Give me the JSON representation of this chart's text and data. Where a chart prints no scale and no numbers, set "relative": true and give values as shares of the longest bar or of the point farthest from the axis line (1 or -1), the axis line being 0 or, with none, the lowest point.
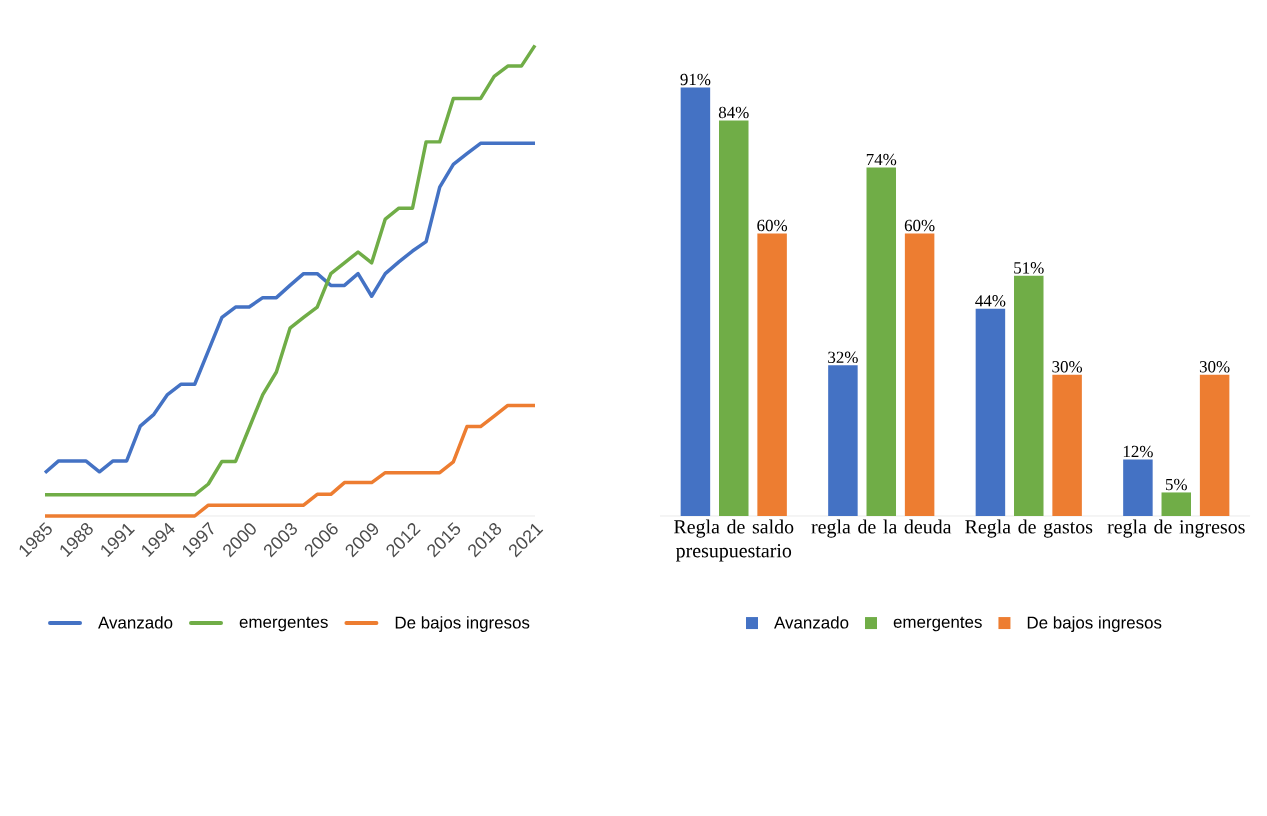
{
  "chart_data": [
    {
      "type": "line",
      "relative": true,
      "marker": "none",
      "legend": "bottom",
      "x": [
        1985,
        1986,
        1987,
        1988,
        1989,
        1990,
        1991,
        1992,
        1993,
        1994,
        1995,
        1996,
        1997,
        1998,
        1999,
        2000,
        2001,
        2002,
        2003,
        2004,
        2005,
        2006,
        2007,
        2008,
        2009,
        2010,
        2011,
        2012,
        2013,
        2014,
        2015,
        2016,
        2017,
        2018,
        2019,
        2020,
        2021
      ],
      "xlim": [
        1985,
        2021
      ],
      "xticks": [
        1985,
        1988,
        1991,
        1994,
        1997,
        2000,
        2003,
        2006,
        2009,
        2012,
        2015,
        2018,
        2021
      ],
      "series": [
        {
          "name": "Avanzado",
          "color": "#4472c4",
          "values": [
            0.092,
            0.117,
            0.117,
            0.117,
            0.094,
            0.117,
            0.117,
            0.191,
            0.216,
            0.258,
            0.28,
            0.28,
            0.351,
            0.422,
            0.444,
            0.444,
            0.464,
            0.464,
            0.49,
            0.515,
            0.515,
            0.49,
            0.49,
            0.515,
            0.467,
            0.515,
            0.54,
            0.563,
            0.583,
            0.699,
            0.747,
            0.77,
            0.792,
            0.792,
            0.792,
            0.792,
            0.792
          ]
        },
        {
          "name": "emergentes",
          "color": "#70ad47",
          "values": [
            0.045,
            0.045,
            0.045,
            0.045,
            0.045,
            0.045,
            0.045,
            0.045,
            0.045,
            0.045,
            0.045,
            0.045,
            0.068,
            0.116,
            0.116,
            0.187,
            0.258,
            0.306,
            0.399,
            0.422,
            0.444,
            0.515,
            0.538,
            0.561,
            0.538,
            0.631,
            0.654,
            0.654,
            0.795,
            0.795,
            0.887,
            0.887,
            0.887,
            0.934,
            0.956,
            0.956,
            1
          ]
        },
        {
          "name": "De bajos ingresos",
          "color": "#ed7d31",
          "values": [
            0,
            0,
            0,
            0,
            0,
            0,
            0,
            0,
            0,
            0,
            0,
            0,
            0.023,
            0.023,
            0.023,
            0.023,
            0.023,
            0.023,
            0.023,
            0.023,
            0.046,
            0.046,
            0.071,
            0.071,
            0.071,
            0.092,
            0.092,
            0.092,
            0.092,
            0.092,
            0.115,
            0.19,
            0.19,
            0.212,
            0.235,
            0.235,
            0.235
          ]
        }
      ]
    },
    {
      "type": "bar",
      "legend": "bottom",
      "categories": [
        "Regla de saldo presupuestario",
        "regla de la deuda",
        "Regla de gastos",
        "regla de ingresos"
      ],
      "series": [
        {
          "name": "Avanzado",
          "color": "#4472c4",
          "values": [
            91,
            32,
            44,
            12
          ],
          "value_labels": [
            "91%",
            "32%",
            "44%",
            "12%"
          ]
        },
        {
          "name": "emergentes",
          "color": "#70ad47",
          "values": [
            84,
            74,
            51,
            5
          ],
          "value_labels": [
            "84%",
            "74%",
            "51%",
            "5%"
          ]
        },
        {
          "name": "De bajos ingresos",
          "color": "#ed7d31",
          "values": [
            60,
            60,
            30,
            30
          ],
          "value_labels": [
            "60%",
            "60%",
            "30%",
            "30%"
          ]
        }
      ]
    }
  ]
}
